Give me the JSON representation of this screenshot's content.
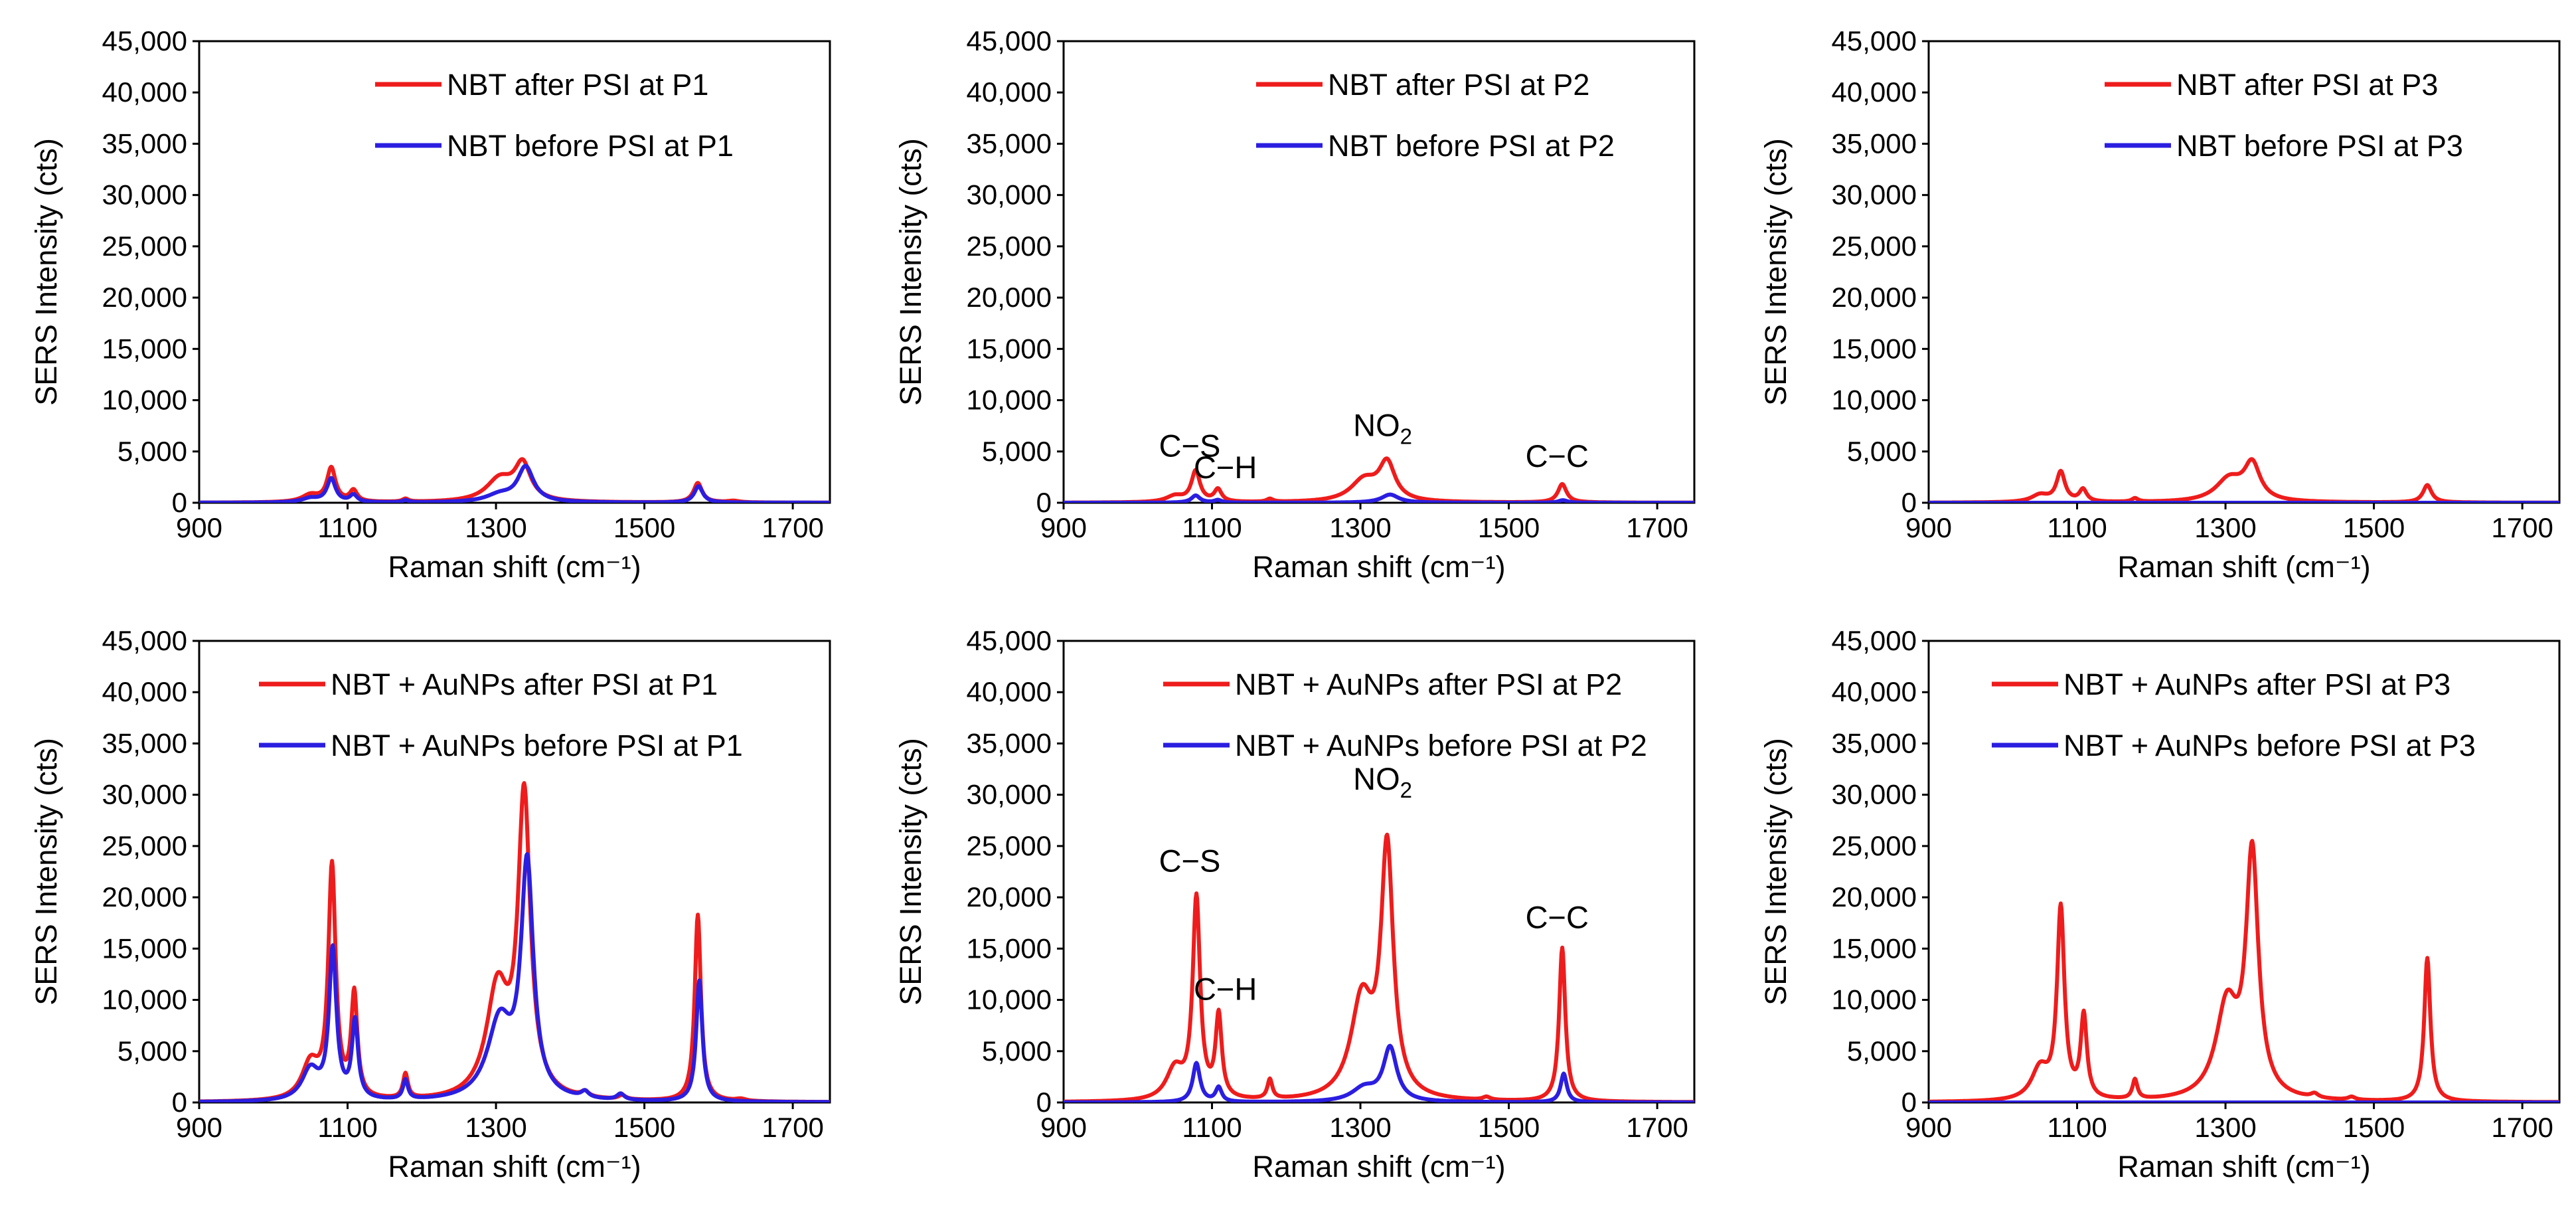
{
  "figure": {
    "panels_layout": "2 rows x 3 columns",
    "colors": {
      "after": "#ee1c1c",
      "before": "#2b1ee0",
      "axis": "#000000"
    }
  },
  "chart_data": [
    {
      "id": "p1-top",
      "type": "line",
      "title": "",
      "xlabel": "Raman shift (cm⁻¹)",
      "ylabel": "SERS Intensity (cts)",
      "xlim": [
        900,
        1750
      ],
      "ylim": [
        0,
        45000
      ],
      "xticks": [
        "900",
        "1100",
        "1300",
        "1500",
        "1700"
      ],
      "yticks": [
        "0",
        "5,000",
        "10,000",
        "15,000",
        "20,000",
        "25,000",
        "30,000",
        "35,000",
        "40,000",
        "45,000"
      ],
      "legend_position": "top-right",
      "series": [
        {
          "name": "NBT after PSI at P1",
          "color_key": "after",
          "baseline": 0,
          "peaks": [
            [
              1050,
              700,
              14
            ],
            [
              1078,
              3300,
              7
            ],
            [
              1108,
              1100,
              6
            ],
            [
              1178,
              300,
              5
            ],
            [
              1305,
              2200,
              22
            ],
            [
              1336,
              3500,
              13
            ],
            [
              1572,
              1900,
              7
            ],
            [
              1620,
              150,
              10
            ]
          ]
        },
        {
          "name": "NBT before PSI at P1",
          "color_key": "before",
          "baseline": 0,
          "peaks": [
            [
              1050,
              400,
              14
            ],
            [
              1078,
              2300,
              7
            ],
            [
              1108,
              700,
              6
            ],
            [
              1178,
              200,
              5
            ],
            [
              1305,
              700,
              22
            ],
            [
              1340,
              3400,
              13
            ],
            [
              1573,
              1600,
              7
            ]
          ]
        }
      ]
    },
    {
      "id": "p2-top",
      "type": "line",
      "title": "",
      "xlabel": "Raman shift (cm⁻¹)",
      "ylabel": "SERS Intensity (cts)",
      "xlim": [
        900,
        1750
      ],
      "ylim": [
        0,
        45000
      ],
      "xticks": [
        "900",
        "1100",
        "1300",
        "1500",
        "1700"
      ],
      "yticks": [
        "0",
        "5,000",
        "10,000",
        "15,000",
        "20,000",
        "25,000",
        "30,000",
        "35,000",
        "40,000",
        "45,000"
      ],
      "legend_position": "top-right",
      "series": [
        {
          "name": "NBT after PSI at P2",
          "color_key": "after",
          "baseline": 0,
          "peaks": [
            [
              1050,
              600,
              14
            ],
            [
              1078,
              3000,
              7
            ],
            [
              1108,
              1200,
              6
            ],
            [
              1178,
              300,
              5
            ],
            [
              1305,
              2100,
              22
            ],
            [
              1336,
              3600,
              13
            ],
            [
              1572,
              1800,
              7
            ]
          ]
        },
        {
          "name": "NBT before PSI at P2",
          "color_key": "before",
          "baseline": 0,
          "peaks": [
            [
              1078,
              700,
              7
            ],
            [
              1108,
              250,
              6
            ],
            [
              1340,
              800,
              14
            ],
            [
              1573,
              250,
              7
            ]
          ]
        }
      ],
      "annotations": [
        {
          "label": "C−S",
          "x": 1070,
          "y": 4500
        },
        {
          "label": "C−H",
          "x": 1118,
          "y": 2400
        },
        {
          "label": "NO",
          "sub": "2",
          "x": 1330,
          "y": 6500
        },
        {
          "label": "C−C",
          "x": 1565,
          "y": 3500
        }
      ]
    },
    {
      "id": "p3-top",
      "type": "line",
      "title": "",
      "xlabel": "Raman shift (cm⁻¹)",
      "ylabel": "SERS Intensity (cts)",
      "xlim": [
        900,
        1750
      ],
      "ylim": [
        0,
        45000
      ],
      "xticks": [
        "900",
        "1100",
        "1300",
        "1500",
        "1700"
      ],
      "yticks": [
        "0",
        "5,000",
        "10,000",
        "15,000",
        "20,000",
        "25,000",
        "30,000",
        "35,000",
        "40,000",
        "45,000"
      ],
      "legend_position": "top-right",
      "series": [
        {
          "name": "NBT after PSI at P3",
          "color_key": "after",
          "baseline": 0,
          "peaks": [
            [
              1050,
              700,
              14
            ],
            [
              1078,
              2900,
              7
            ],
            [
              1108,
              1200,
              6
            ],
            [
              1178,
              350,
              5
            ],
            [
              1305,
              2200,
              22
            ],
            [
              1336,
              3500,
              13
            ],
            [
              1572,
              1700,
              7
            ]
          ]
        },
        {
          "name": "NBT before PSI at P3",
          "color_key": "before",
          "baseline": 0,
          "peaks": []
        }
      ]
    },
    {
      "id": "p1-bottom",
      "type": "line",
      "title": "",
      "xlabel": "Raman shift (cm⁻¹)",
      "ylabel": "SERS Intensity (cts)",
      "xlim": [
        900,
        1750
      ],
      "ylim": [
        0,
        45000
      ],
      "xticks": [
        "900",
        "1100",
        "1300",
        "1500",
        "1700"
      ],
      "yticks": [
        "0",
        "5,000",
        "10,000",
        "15,000",
        "20,000",
        "25,000",
        "30,000",
        "35,000",
        "40,000",
        "45,000"
      ],
      "legend_position": "top-right",
      "series": [
        {
          "name": "NBT + AuNPs after PSI at P1",
          "color_key": "after",
          "baseline": 0,
          "peaks": [
            [
              1050,
              3500,
              14
            ],
            [
              1079,
              22500,
              6
            ],
            [
              1109,
              10000,
              5
            ],
            [
              1178,
              2400,
              4
            ],
            [
              1302,
              10500,
              18
            ],
            [
              1338,
              29000,
              10
            ],
            [
              1420,
              500,
              6
            ],
            [
              1470,
              400,
              6
            ],
            [
              1572,
              18200,
              5
            ],
            [
              1630,
              200,
              8
            ]
          ]
        },
        {
          "name": "NBT + AuNPs before PSI at P1",
          "color_key": "before",
          "baseline": 0,
          "peaks": [
            [
              1050,
              3000,
              14
            ],
            [
              1080,
              14500,
              6
            ],
            [
              1110,
              7500,
              5
            ],
            [
              1178,
              1900,
              4
            ],
            [
              1305,
              7500,
              20
            ],
            [
              1342,
              22500,
              10
            ],
            [
              1420,
              600,
              6
            ],
            [
              1468,
              600,
              6
            ],
            [
              1574,
              11800,
              5
            ]
          ]
        }
      ]
    },
    {
      "id": "p2-bottom",
      "type": "line",
      "title": "",
      "xlabel": "Raman shift (cm⁻¹)",
      "ylabel": "SERS Intensity (cts)",
      "xlim": [
        900,
        1750
      ],
      "ylim": [
        0,
        45000
      ],
      "xticks": [
        "900",
        "1100",
        "1300",
        "1500",
        "1700"
      ],
      "yticks": [
        "0",
        "5,000",
        "10,000",
        "15,000",
        "20,000",
        "25,000",
        "30,000",
        "35,000",
        "40,000",
        "45,000"
      ],
      "legend_position": "top-right",
      "series": [
        {
          "name": "NBT + AuNPs after PSI at P2",
          "color_key": "after",
          "baseline": 0,
          "peaks": [
            [
              1050,
              3000,
              14
            ],
            [
              1079,
              19500,
              6
            ],
            [
              1109,
              8000,
              5
            ],
            [
              1178,
              1900,
              4
            ],
            [
              1302,
              9500,
              18
            ],
            [
              1336,
              24000,
              10
            ],
            [
              1572,
              15000,
              5
            ],
            [
              1470,
              300,
              6
            ]
          ]
        },
        {
          "name": "NBT + AuNPs before PSI at P2",
          "color_key": "before",
          "baseline": 0,
          "peaks": [
            [
              1079,
              3800,
              6
            ],
            [
              1109,
              1400,
              5
            ],
            [
              1305,
              1300,
              20
            ],
            [
              1340,
              5200,
              11
            ],
            [
              1574,
              2800,
              5
            ]
          ]
        }
      ],
      "annotations": [
        {
          "label": "C−S",
          "x": 1070,
          "y": 22500
        },
        {
          "label": "C−H",
          "x": 1118,
          "y": 10000
        },
        {
          "label": "NO",
          "sub": "2",
          "x": 1330,
          "y": 30500
        },
        {
          "label": "C−C",
          "x": 1565,
          "y": 17000
        }
      ]
    },
    {
      "id": "p3-bottom",
      "type": "line",
      "title": "",
      "xlabel": "Raman shift (cm⁻¹)",
      "ylabel": "SERS Intensity (cts)",
      "xlim": [
        900,
        1750
      ],
      "ylim": [
        0,
        45000
      ],
      "xticks": [
        "900",
        "1100",
        "1300",
        "1500",
        "1700"
      ],
      "yticks": [
        "0",
        "5,000",
        "10,000",
        "15,000",
        "20,000",
        "25,000",
        "30,000",
        "35,000",
        "40,000",
        "45,000"
      ],
      "legend_position": "top-right",
      "series": [
        {
          "name": "NBT + AuNPs after PSI at P3",
          "color_key": "after",
          "baseline": 0,
          "peaks": [
            [
              1050,
              3000,
              14
            ],
            [
              1078,
              18500,
              6
            ],
            [
              1109,
              8000,
              5
            ],
            [
              1178,
              1900,
              4
            ],
            [
              1302,
              9000,
              18
            ],
            [
              1336,
              23500,
              10
            ],
            [
              1420,
              400,
              6
            ],
            [
              1470,
              300,
              6
            ],
            [
              1572,
              14000,
              5
            ]
          ]
        },
        {
          "name": "NBT + AuNPs before PSI at P3",
          "color_key": "before",
          "baseline": 0,
          "peaks": []
        }
      ]
    }
  ]
}
